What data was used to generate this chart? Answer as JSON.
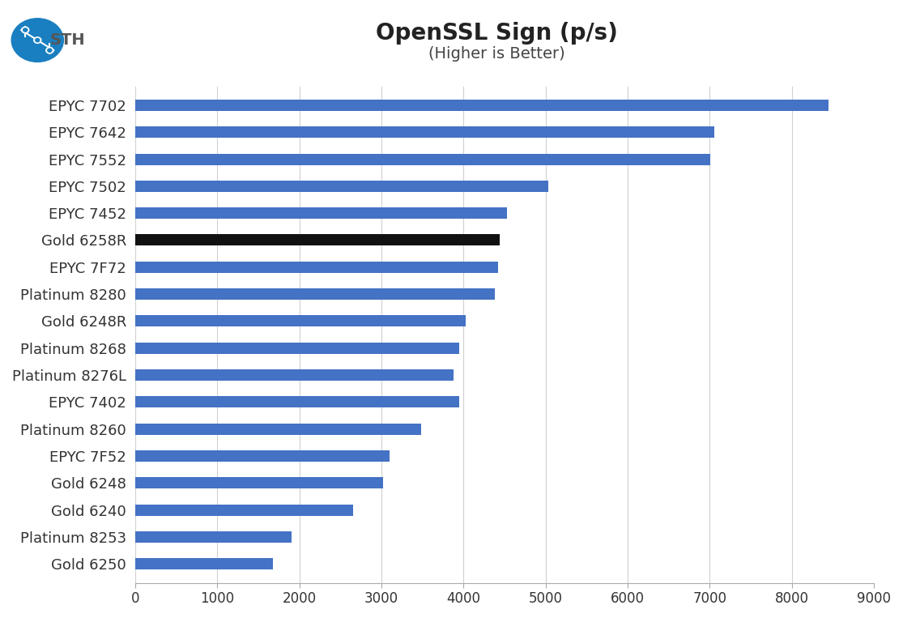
{
  "title": "OpenSSL Sign (p/s)",
  "subtitle": "(Higher is Better)",
  "categories": [
    "Gold 6250",
    "Platinum 8253",
    "Gold 6240",
    "Gold 6248",
    "EPYC 7F52",
    "Platinum 8260",
    "EPYC 7402",
    "Platinum 8276L",
    "Platinum 8268",
    "Gold 6248R",
    "Platinum 8280",
    "EPYC 7F72",
    "Gold 6258R",
    "EPYC 7452",
    "EPYC 7502",
    "EPYC 7552",
    "EPYC 7642",
    "EPYC 7702"
  ],
  "values": [
    1680,
    1900,
    2650,
    3020,
    3100,
    3480,
    3950,
    3880,
    3950,
    4030,
    4380,
    4420,
    4440,
    4530,
    5030,
    7010,
    7060,
    8450
  ],
  "bar_colors": [
    "#4472c4",
    "#4472c4",
    "#4472c4",
    "#4472c4",
    "#4472c4",
    "#4472c4",
    "#4472c4",
    "#4472c4",
    "#4472c4",
    "#4472c4",
    "#4472c4",
    "#4472c4",
    "#111111",
    "#4472c4",
    "#4472c4",
    "#4472c4",
    "#4472c4",
    "#4472c4"
  ],
  "xlim": [
    0,
    9000
  ],
  "xticks": [
    0,
    1000,
    2000,
    3000,
    4000,
    5000,
    6000,
    7000,
    8000,
    9000
  ],
  "background_color": "#ffffff",
  "grid_color": "#d0d0d0",
  "title_fontsize": 20,
  "subtitle_fontsize": 14,
  "label_fontsize": 13,
  "tick_fontsize": 12,
  "bar_height": 0.42
}
